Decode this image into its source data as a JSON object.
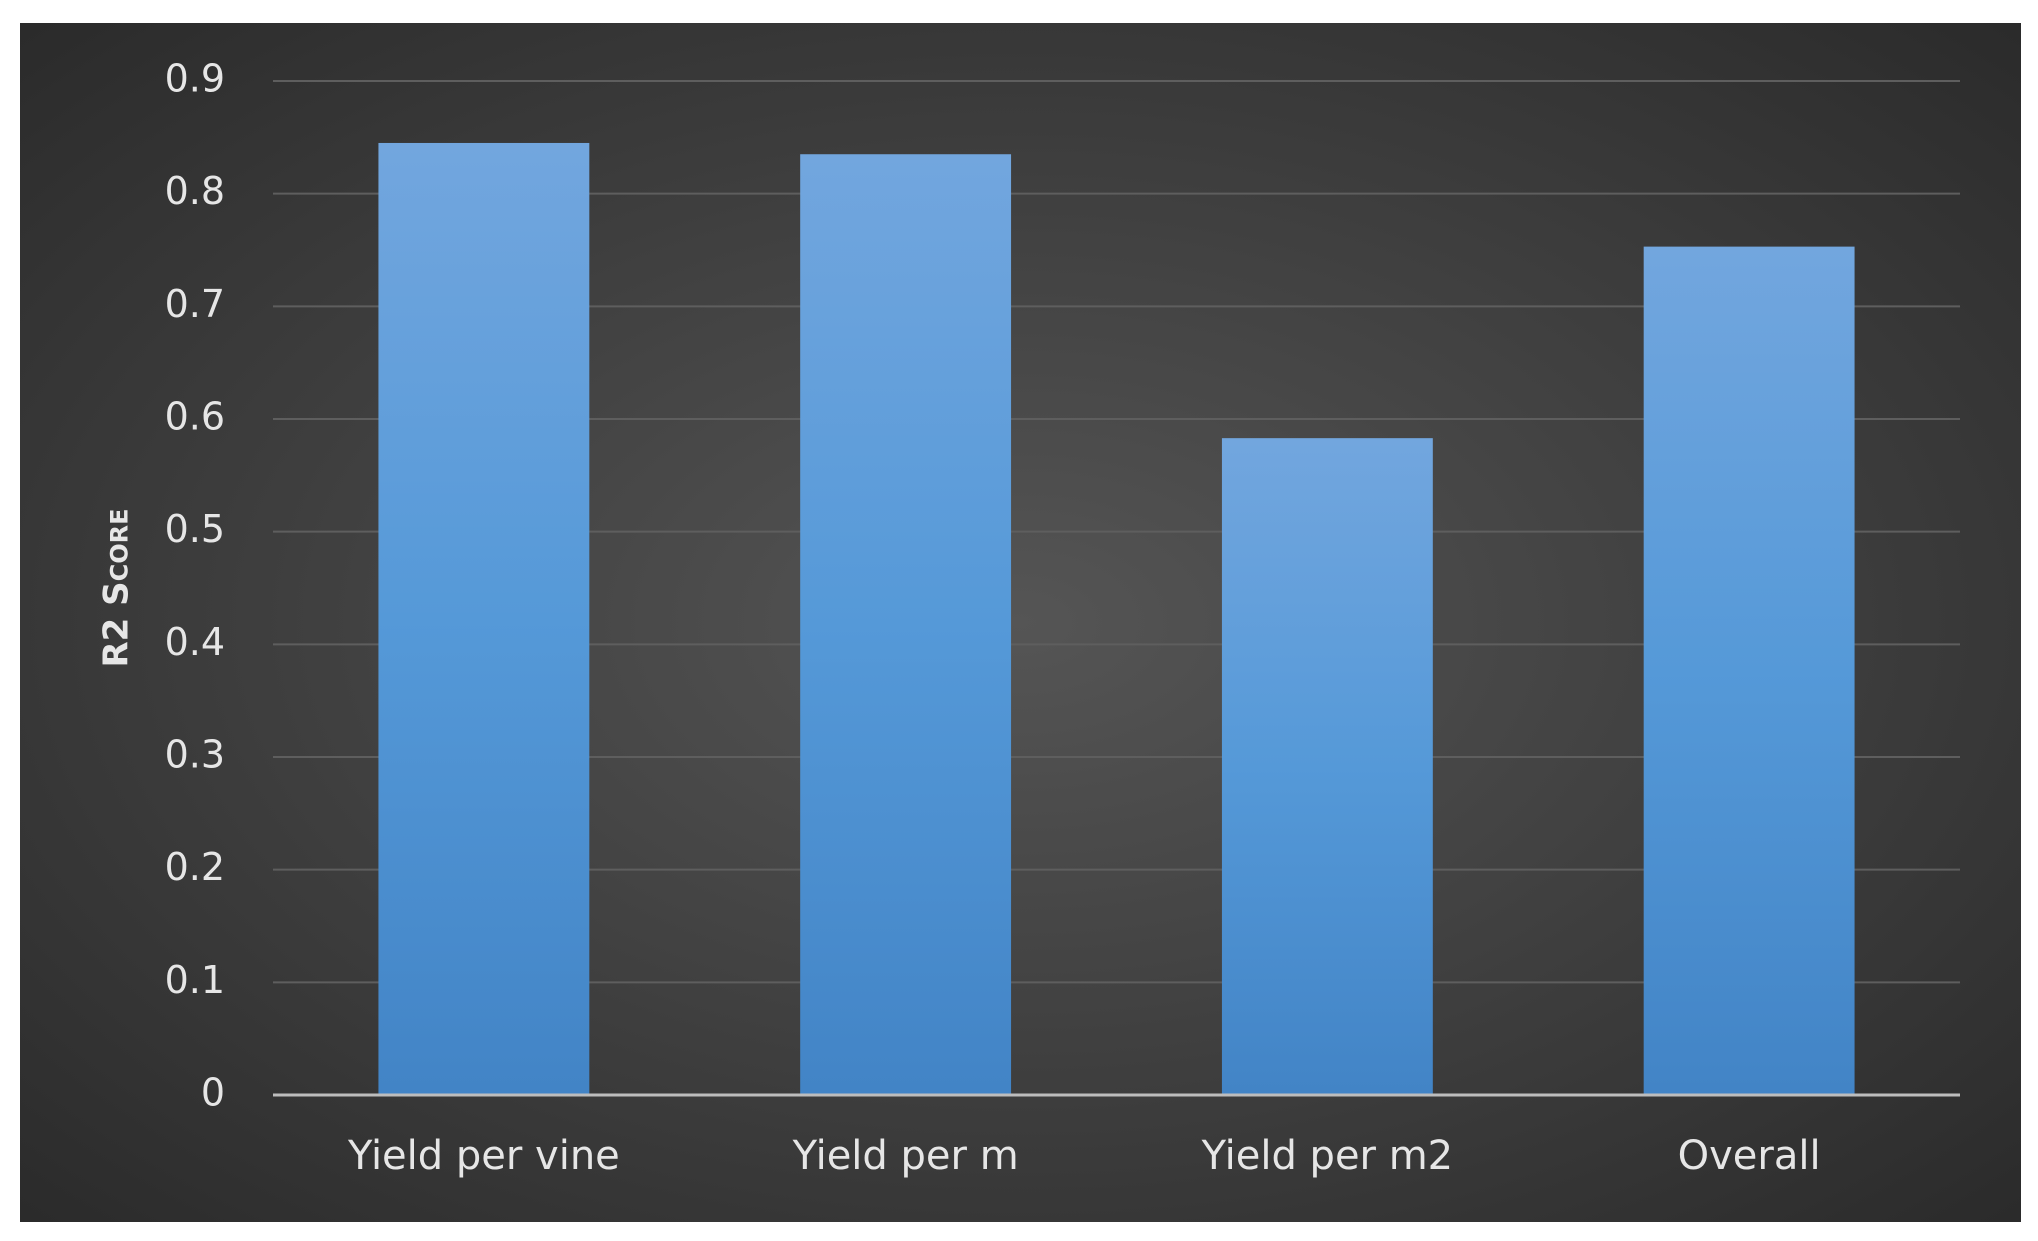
{
  "chart_data": {
    "type": "bar",
    "y_label": "R2 Score",
    "categories": [
      "Yield per vine",
      "Yield per m",
      "Yield per m2",
      "Overall"
    ],
    "values": [
      0.845,
      0.835,
      0.583,
      0.753
    ],
    "color": "#5599d8",
    "ylim": [
      0,
      0.9
    ],
    "yticks": [
      0,
      0.1,
      0.2,
      0.3,
      0.4,
      0.5,
      0.6,
      0.7,
      0.8,
      0.9
    ],
    "grid": true
  }
}
